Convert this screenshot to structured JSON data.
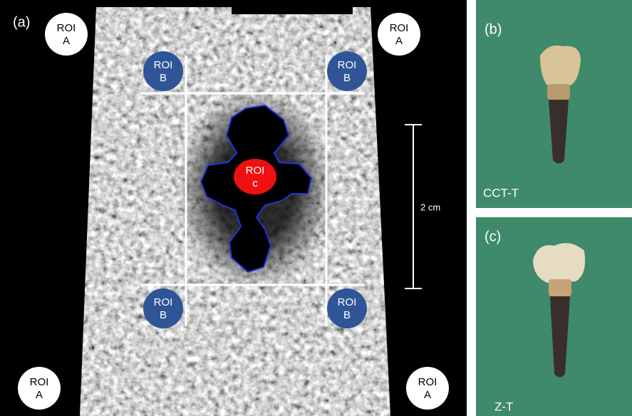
{
  "panels": [
    {
      "label": "(a)",
      "rois": [
        {
          "line1": "ROI",
          "line2": "A"
        },
        {
          "line1": "ROI",
          "line2": "A"
        },
        {
          "line1": "ROI",
          "line2": "A"
        },
        {
          "line1": "ROI",
          "line2": "A"
        },
        {
          "line1": "ROI",
          "line2": "B"
        },
        {
          "line1": "ROI",
          "line2": "B"
        },
        {
          "line1": "ROI",
          "line2": "B"
        },
        {
          "line1": "ROI",
          "line2": "B"
        },
        {
          "line1": "ROI",
          "line2": "c"
        }
      ],
      "scale_bar": "2 cm"
    },
    {
      "label": "(b)",
      "caption": "CCT-T"
    },
    {
      "label": "(c)",
      "caption": "Z-T"
    }
  ]
}
